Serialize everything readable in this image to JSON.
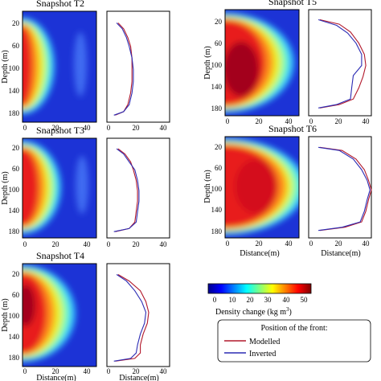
{
  "chart_data": [
    {
      "panel": "T2",
      "title": "Snapshot T2",
      "type": "heatmap",
      "xlabel": "",
      "ylabel": "Depth (m)",
      "xlim": [
        0,
        45
      ],
      "ylim": [
        0,
        190
      ],
      "xticks": [
        0,
        20,
        40
      ],
      "yticks": [
        20,
        60,
        100,
        140,
        180
      ],
      "front_modelled": [
        [
          8,
          20
        ],
        [
          12,
          30
        ],
        [
          15,
          45
        ],
        [
          17,
          60
        ],
        [
          18,
          80
        ],
        [
          18,
          100
        ],
        [
          18,
          120
        ],
        [
          17,
          140
        ],
        [
          15,
          160
        ],
        [
          12,
          172
        ],
        [
          6,
          178
        ]
      ],
      "front_inverted": [
        [
          7,
          20
        ],
        [
          11,
          30
        ],
        [
          14,
          45
        ],
        [
          16,
          60
        ],
        [
          18,
          80
        ],
        [
          19,
          100
        ],
        [
          19,
          120
        ],
        [
          18,
          140
        ],
        [
          16,
          160
        ],
        [
          12,
          172
        ],
        [
          5,
          178
        ]
      ]
    },
    {
      "panel": "T3",
      "title": "Snapshot T3",
      "type": "heatmap",
      "xlabel": "",
      "ylabel": "Depth (m)",
      "xlim": [
        0,
        45
      ],
      "ylim": [
        0,
        190
      ],
      "xticks": [
        0,
        20,
        40
      ],
      "yticks": [
        20,
        60,
        100,
        140,
        180
      ],
      "front_modelled": [
        [
          8,
          20
        ],
        [
          13,
          30
        ],
        [
          17,
          45
        ],
        [
          19,
          60
        ],
        [
          21,
          80
        ],
        [
          22,
          100
        ],
        [
          22,
          120
        ],
        [
          21,
          140
        ],
        [
          20,
          160
        ],
        [
          16,
          172
        ],
        [
          6,
          178
        ]
      ],
      "front_inverted": [
        [
          7,
          20
        ],
        [
          12,
          30
        ],
        [
          16,
          45
        ],
        [
          20,
          60
        ],
        [
          22,
          80
        ],
        [
          23,
          100
        ],
        [
          23,
          120
        ],
        [
          22,
          140
        ],
        [
          21,
          160
        ],
        [
          16,
          172
        ],
        [
          5,
          178
        ]
      ]
    },
    {
      "panel": "T4",
      "title": "Snapshot T4",
      "type": "heatmap",
      "xlabel": "Distance(m)",
      "ylabel": "Depth (m)",
      "xlim": [
        0,
        45
      ],
      "ylim": [
        0,
        190
      ],
      "xticks": [
        0,
        20,
        40
      ],
      "yticks": [
        20,
        60,
        100,
        140,
        180
      ],
      "front_modelled": [
        [
          8,
          20
        ],
        [
          16,
          32
        ],
        [
          24,
          50
        ],
        [
          28,
          70
        ],
        [
          30,
          90
        ],
        [
          29,
          110
        ],
        [
          26,
          130
        ],
        [
          24,
          150
        ],
        [
          24,
          165
        ],
        [
          20,
          175
        ],
        [
          6,
          180
        ]
      ],
      "front_inverted": [
        [
          7,
          20
        ],
        [
          14,
          32
        ],
        [
          20,
          50
        ],
        [
          25,
          70
        ],
        [
          28,
          90
        ],
        [
          27,
          110
        ],
        [
          24,
          130
        ],
        [
          22,
          150
        ],
        [
          21,
          165
        ],
        [
          17,
          175
        ],
        [
          5,
          180
        ]
      ]
    },
    {
      "panel": "T5",
      "title": "Snapshot T5",
      "type": "heatmap",
      "xlabel": "",
      "ylabel": "Depth (m)",
      "xlim": [
        0,
        45
      ],
      "ylim": [
        0,
        190
      ],
      "xticks": [
        0,
        20,
        40
      ],
      "yticks": [
        20,
        60,
        100,
        140,
        180
      ],
      "front_modelled": [
        [
          8,
          18
        ],
        [
          22,
          26
        ],
        [
          30,
          40
        ],
        [
          36,
          60
        ],
        [
          40,
          80
        ],
        [
          41,
          100
        ],
        [
          39,
          120
        ],
        [
          36,
          140
        ],
        [
          32,
          160
        ],
        [
          22,
          170
        ],
        [
          8,
          176
        ]
      ],
      "front_inverted": [
        [
          7,
          18
        ],
        [
          20,
          28
        ],
        [
          28,
          42
        ],
        [
          34,
          60
        ],
        [
          38,
          80
        ],
        [
          38,
          100
        ],
        [
          32,
          118
        ],
        [
          31,
          138
        ],
        [
          30,
          160
        ],
        [
          20,
          170
        ],
        [
          7,
          176
        ]
      ]
    },
    {
      "panel": "T6",
      "title": "Snapshot T6",
      "type": "heatmap",
      "xlabel": "Distance(m)",
      "ylabel": "Depth (m)",
      "xlim": [
        0,
        45
      ],
      "ylim": [
        0,
        190
      ],
      "xticks": [
        0,
        20,
        40
      ],
      "yticks": [
        20,
        60,
        100,
        140,
        180
      ],
      "front_modelled": [
        [
          8,
          20
        ],
        [
          24,
          26
        ],
        [
          34,
          42
        ],
        [
          40,
          62
        ],
        [
          43,
          82
        ],
        [
          45,
          100
        ],
        [
          43,
          118
        ],
        [
          41,
          140
        ],
        [
          38,
          160
        ],
        [
          26,
          170
        ],
        [
          8,
          176
        ]
      ],
      "front_inverted": [
        [
          7,
          20
        ],
        [
          22,
          26
        ],
        [
          32,
          42
        ],
        [
          38,
          62
        ],
        [
          42,
          82
        ],
        [
          44,
          100
        ],
        [
          42,
          118
        ],
        [
          40,
          140
        ],
        [
          37,
          160
        ],
        [
          24,
          170
        ],
        [
          7,
          176
        ]
      ]
    }
  ],
  "colorbar": {
    "label": "Density change (kg m",
    "label_sup": "3",
    "ticks": [
      "0",
      "10",
      "20",
      "30",
      "40",
      "50"
    ]
  },
  "legend": {
    "title": "Position of the front:",
    "modelled": "Modelled",
    "inverted": "Inverted",
    "modelled_color": "#b2182b",
    "inverted_color": "#2c2cb4"
  },
  "colors": {
    "low": "#1a2bcc",
    "mid": "#f2e81a",
    "high": "#b0001a"
  }
}
